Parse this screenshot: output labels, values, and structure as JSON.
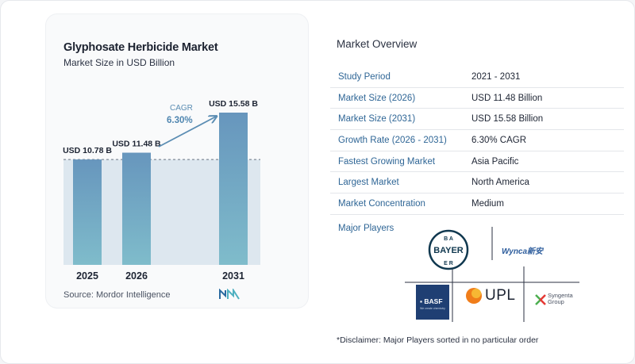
{
  "chart": {
    "title": "Glyphosate Herbicide Market",
    "subtitle": "Market Size in USD Billion",
    "cagr_label": "CAGR",
    "cagr_value": "6.30%",
    "source": "Source:  Mordor Intelligence"
  },
  "chart_data": {
    "type": "bar",
    "categories": [
      "2025",
      "2026",
      "2031"
    ],
    "values": [
      10.78,
      11.48,
      15.58
    ],
    "data_labels": [
      "USD 10.78 B",
      "USD 11.48 B",
      "USD 15.58 B"
    ],
    "title": "Glyphosate Herbicide Market",
    "subtitle": "Market Size in USD Billion",
    "ylim": [
      0,
      15.58
    ],
    "annotation": "CAGR 6.30%",
    "colors": {
      "bar_top": "#6796bd",
      "bar_bottom": "#7fbccb",
      "band": "#dde7ef",
      "arrow": "#5b8db3"
    }
  },
  "overview": {
    "title": "Market Overview",
    "rows": [
      {
        "label": "Study Period",
        "value": "2021 - 2031"
      },
      {
        "label": "Market Size (2026)",
        "value": "USD 11.48 Billion"
      },
      {
        "label": "Market Size (2031)",
        "value": "USD 15.58 Billion"
      },
      {
        "label": "Growth Rate (2026 - 2031)",
        "value": "6.30% CAGR"
      },
      {
        "label": "Fastest Growing Market",
        "value": "Asia Pacific"
      },
      {
        "label": "Largest Market",
        "value": "North America"
      },
      {
        "label": "Market Concentration",
        "value": "Medium"
      }
    ]
  },
  "players": {
    "label": "Major Players",
    "logos": [
      "BAYER",
      "Wynca",
      "BASF",
      "UPL",
      "Syngenta Group"
    ],
    "bayer_text": "BAYER",
    "wynca_text": "Wynca新安",
    "basf_text": "BASF",
    "basf_tagline": "We create chemistry",
    "upl_text": "UPL",
    "syngenta_line1": "Syngenta",
    "syngenta_line2": "Group"
  },
  "disclaimer": "*Disclaimer: Major Players sorted in no particular order"
}
